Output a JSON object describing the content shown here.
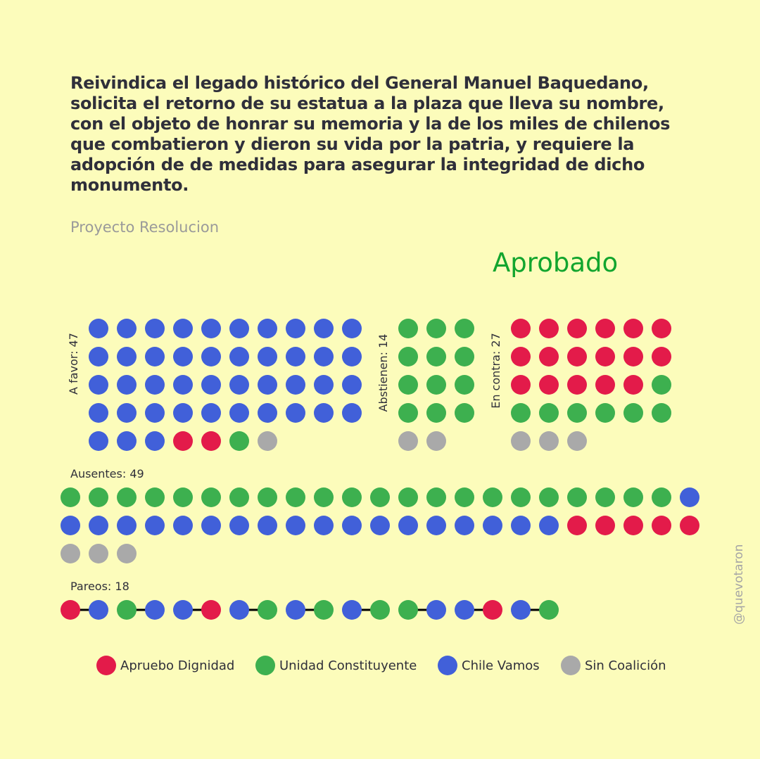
{
  "title": "Reivindica el legado histórico del General Manuel Baquedano, solicita el retorno de su estatua a la plaza que lleva su nombre, con el objeto de honrar su memoria y la de los miles de chilenos que combatieron y dieron su vida por la patria, y requiere la adopción de de medidas para asegurar la integridad de dicho monumento.",
  "subtitle": "Proyecto Resolucion",
  "result": "Aprobado",
  "handle": "@quevotaron",
  "colors": {
    "background": "#fcfcbb",
    "result": "#12a52e",
    "apruebo": "#e31b4a",
    "unidad": "#3db04f",
    "chile": "#4160d9",
    "sin": "#a9a9a9"
  },
  "chart_data": {
    "type": "dot-matrix",
    "groups": [
      {
        "key": "favor",
        "label": "A favor: 47",
        "count": 47,
        "composition": {
          "chile": 43,
          "apruebo": 2,
          "unidad": 1,
          "sin": 1
        }
      },
      {
        "key": "abstienen",
        "label": "Abstienen: 14",
        "count": 14,
        "composition": {
          "unidad": 12,
          "sin": 2
        }
      },
      {
        "key": "contra",
        "label": "En contra: 27",
        "count": 27,
        "composition": {
          "apruebo": 17,
          "unidad": 7,
          "sin": 3
        }
      },
      {
        "key": "ausentes",
        "label": "Ausentes: 49",
        "count": 49,
        "composition": {
          "unidad": 22,
          "chile": 19,
          "apruebo": 5,
          "sin": 3
        }
      },
      {
        "key": "pareos",
        "label": "Pareos: 18",
        "count": 18,
        "pairs": [
          [
            "apruebo",
            "chile"
          ],
          [
            "unidad",
            "chile"
          ],
          [
            "chile",
            "apruebo"
          ],
          [
            "chile",
            "unidad"
          ],
          [
            "chile",
            "unidad"
          ],
          [
            "chile",
            "unidad"
          ],
          [
            "unidad",
            "chile"
          ],
          [
            "chile",
            "apruebo"
          ],
          [
            "chile",
            "unidad"
          ]
        ]
      }
    ],
    "legend": [
      {
        "key": "apruebo",
        "label": "Apruebo Dignidad"
      },
      {
        "key": "unidad",
        "label": "Unidad Constituyente"
      },
      {
        "key": "chile",
        "label": "Chile Vamos"
      },
      {
        "key": "sin",
        "label": "Sin Coalición"
      }
    ]
  }
}
